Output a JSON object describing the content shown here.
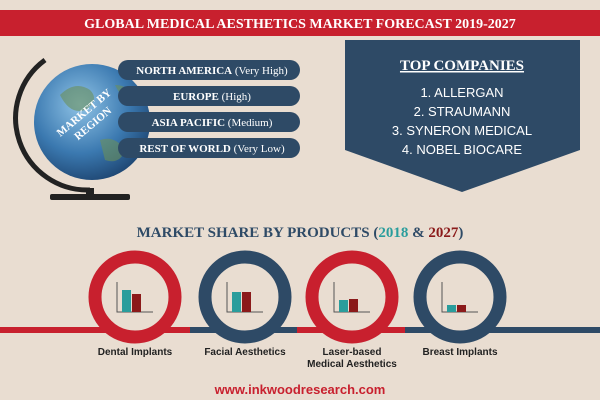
{
  "header": {
    "title": "GLOBAL MEDICAL AESTHETICS MARKET FORECAST 2019-2027"
  },
  "globe": {
    "label_1": "MARKET BY",
    "label_2": "REGION"
  },
  "regions": [
    {
      "name": "NORTH AMERICA",
      "level": "(Very High)"
    },
    {
      "name": "EUROPE",
      "level": "(High)"
    },
    {
      "name": "ASIA PACIFIC",
      "level": "(Medium)"
    },
    {
      "name": "REST OF WORLD",
      "level": "(Very Low)"
    }
  ],
  "top_companies": {
    "title": "TOP COMPANIES",
    "items": [
      "1. ALLERGAN",
      "2. STRAUMANN",
      "3. SYNERON MEDICAL",
      "4. NOBEL BIOCARE"
    ]
  },
  "products": {
    "heading": {
      "text": "MARKET SHARE BY PRODUCTS",
      "open": "(",
      "year_1": "2018",
      "and": "&",
      "year_2": "2027",
      "close": ")"
    },
    "items": [
      {
        "label_1": "Dental Implants",
        "values": [
          22,
          18
        ]
      },
      {
        "label_1": "Facial Aesthetics",
        "values": [
          20,
          20
        ]
      },
      {
        "label_1": "Laser-based",
        "label_2": "Medical Aesthetics",
        "values": [
          12,
          13
        ]
      },
      {
        "label_1": "Breast Implants",
        "values": [
          7,
          7
        ]
      }
    ]
  },
  "footer": {
    "url": "www.inkwoodresearch.com"
  }
}
